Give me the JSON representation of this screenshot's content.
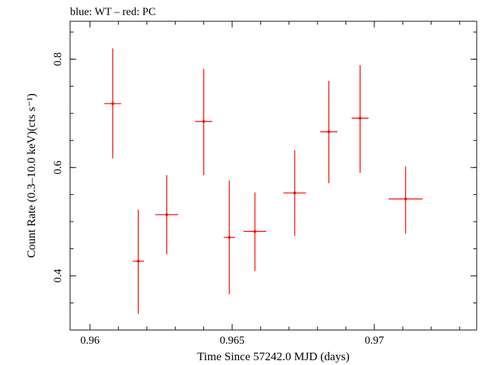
{
  "chart_data": {
    "type": "scatter",
    "title": "blue: WT – red: PC",
    "xlabel": "Time Since 57242.0 MJD (days)",
    "ylabel": "Count Rate (0.3–10.0 keV)(cts s⁻¹)",
    "xlim": [
      0.9593,
      0.9736
    ],
    "ylim": [
      0.3,
      0.87
    ],
    "xticks": [
      {
        "value": 0.96,
        "label": "0.96"
      },
      {
        "value": 0.965,
        "label": "0.965"
      },
      {
        "value": 0.97,
        "label": "0.97"
      }
    ],
    "yticks": [
      {
        "value": 0.4,
        "label": "0.4"
      },
      {
        "value": 0.6,
        "label": "0.6"
      },
      {
        "value": 0.8,
        "label": "0.8"
      }
    ],
    "x_minor_step": 0.001,
    "y_minor_step": 0.05,
    "grid": false,
    "series": [
      {
        "color": "#ff0000",
        "points": [
          {
            "x": 0.9608,
            "xerr": 0.0003,
            "y": 0.718,
            "ylo": 0.617,
            "yhi": 0.82
          },
          {
            "x": 0.9617,
            "xerr": 0.0002,
            "y": 0.427,
            "ylo": 0.33,
            "yhi": 0.522
          },
          {
            "x": 0.9627,
            "xerr": 0.0004,
            "y": 0.513,
            "ylo": 0.44,
            "yhi": 0.586
          },
          {
            "x": 0.964,
            "xerr": 0.0003,
            "y": 0.685,
            "ylo": 0.586,
            "yhi": 0.782
          },
          {
            "x": 0.9649,
            "xerr": 0.0002,
            "y": 0.471,
            "ylo": 0.366,
            "yhi": 0.576
          },
          {
            "x": 0.9658,
            "xerr": 0.0004,
            "y": 0.482,
            "ylo": 0.409,
            "yhi": 0.554
          },
          {
            "x": 0.9672,
            "xerr": 0.0004,
            "y": 0.553,
            "ylo": 0.474,
            "yhi": 0.632
          },
          {
            "x": 0.9684,
            "xerr": 0.0003,
            "y": 0.666,
            "ylo": 0.571,
            "yhi": 0.76
          },
          {
            "x": 0.9695,
            "xerr": 0.0003,
            "y": 0.691,
            "ylo": 0.59,
            "yhi": 0.789
          },
          {
            "x": 0.9711,
            "xerr": 0.0006,
            "y": 0.542,
            "ylo": 0.478,
            "yhi": 0.602
          }
        ]
      }
    ]
  }
}
